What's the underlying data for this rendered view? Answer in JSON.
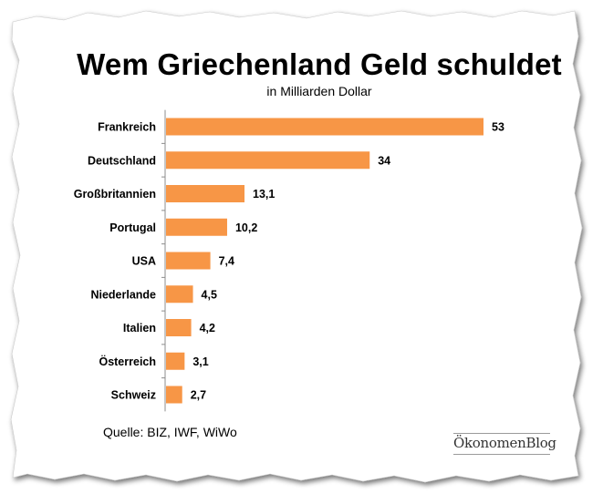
{
  "chart_data": {
    "type": "bar",
    "orientation": "horizontal",
    "title": "Wem Griechenland Geld schuldet",
    "subtitle": "in Milliarden Dollar",
    "categories": [
      "Frankreich",
      "Deutschland",
      "Großbritannien",
      "Portugal",
      "USA",
      "Niederlande",
      "Italien",
      "Österreich",
      "Schweiz"
    ],
    "values": [
      53,
      34,
      13.1,
      10.2,
      7.4,
      4.5,
      4.2,
      3.1,
      2.7
    ],
    "value_labels": [
      "53",
      "34",
      "13,1",
      "10,2",
      "7,4",
      "4,5",
      "4,2",
      "3,1",
      "2,7"
    ],
    "xlim": [
      0,
      53
    ],
    "bar_color": "#f79646",
    "grid": false,
    "source": "Quelle: BIZ, IWF, WiWo"
  },
  "brand": "ÖkonomenBlog"
}
